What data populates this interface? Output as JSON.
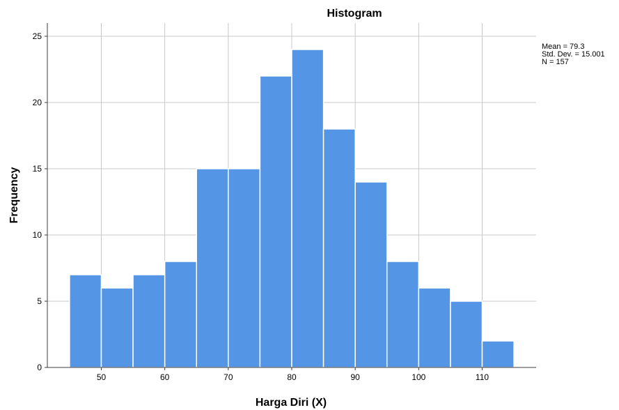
{
  "chart_data": {
    "type": "bar",
    "title": "Histogram",
    "xlabel": "Harga Diri (X)",
    "ylabel": "Frequency",
    "bin_width": 5,
    "bins": [
      {
        "start": 45,
        "end": 50,
        "count": 7
      },
      {
        "start": 50,
        "end": 55,
        "count": 6
      },
      {
        "start": 55,
        "end": 60,
        "count": 7
      },
      {
        "start": 60,
        "end": 65,
        "count": 8
      },
      {
        "start": 65,
        "end": 70,
        "count": 15
      },
      {
        "start": 70,
        "end": 75,
        "count": 15
      },
      {
        "start": 75,
        "end": 80,
        "count": 22
      },
      {
        "start": 80,
        "end": 85,
        "count": 24
      },
      {
        "start": 85,
        "end": 90,
        "count": 18
      },
      {
        "start": 90,
        "end": 95,
        "count": 14
      },
      {
        "start": 95,
        "end": 100,
        "count": 8
      },
      {
        "start": 100,
        "end": 105,
        "count": 6
      },
      {
        "start": 105,
        "end": 110,
        "count": 5
      },
      {
        "start": 110,
        "end": 115,
        "count": 2
      }
    ],
    "xlim": [
      41.5,
      118.5
    ],
    "ylim": [
      0,
      26
    ],
    "xticks": [
      50,
      60,
      70,
      80,
      90,
      100,
      110
    ],
    "yticks": [
      0,
      5,
      10,
      15,
      20,
      25
    ],
    "grid": true,
    "bar_color": "#5595e5",
    "stats": {
      "mean_label": "Mean = 79.3",
      "sd_label": "Std. Dev. = 15.001",
      "n_label": "N = 157"
    }
  }
}
